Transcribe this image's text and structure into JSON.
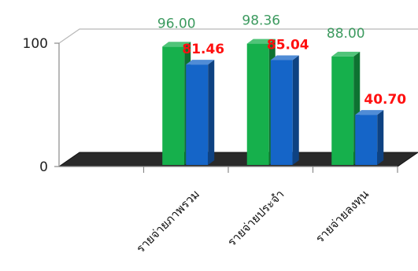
{
  "chart_data": {
    "type": "bar",
    "categories": [
      "รายจ่ายภาพรวม",
      "รายจ่ายประจำ",
      "รายจ่ายลงทุน"
    ],
    "series": [
      {
        "values": [
          96.0,
          98.36,
          88.0
        ],
        "labels": [
          "96.00",
          "98.36",
          "88.00"
        ],
        "color": "#16b04c",
        "label_color": "#3c9a5f"
      },
      {
        "values": [
          81.46,
          85.04,
          40.7
        ],
        "labels": [
          "81.46",
          "85.04",
          "40.70"
        ],
        "color": "#1565c8",
        "label_color": "#ff1010"
      }
    ],
    "yticks": [
      "0",
      "100"
    ],
    "ylim": [
      0,
      100
    ],
    "floor_color": "#2a2a2a",
    "grid": true,
    "legend": false
  }
}
